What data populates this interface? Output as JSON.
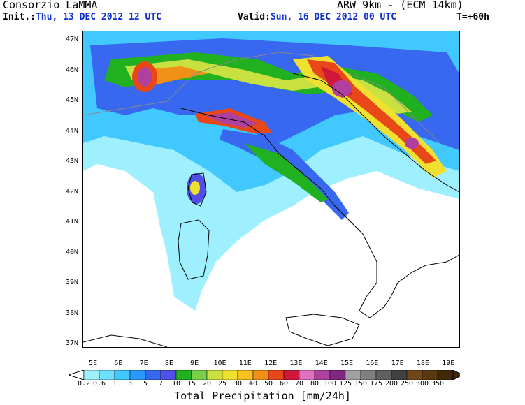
{
  "header": {
    "org": "Consorzio LaMMA",
    "model": "ARW 9km - (ECM 14km)",
    "init_label": "Init.:",
    "init_value": "Thu, 13 DEC 2012  12 UTC",
    "valid_label": "Valid:",
    "valid_value": "Sun, 16 DEC 2012  00 UTC",
    "lead": "T=+60h"
  },
  "lat_labels": [
    "47N",
    "46N",
    "45N",
    "44N",
    "43N",
    "42N",
    "41N",
    "40N",
    "39N",
    "38N",
    "37N"
  ],
  "lon_labels": [
    "5E",
    "6E",
    "7E",
    "8E",
    "9E",
    "10E",
    "11E",
    "12E",
    "13E",
    "14E",
    "15E",
    "16E",
    "17E",
    "18E",
    "19E"
  ],
  "colorbar": {
    "labels": [
      "0.2",
      "0.6",
      "1",
      "3",
      "5",
      "7",
      "10",
      "15",
      "20",
      "25",
      "30",
      "40",
      "50",
      "60",
      "70",
      "80",
      "100",
      "125",
      "150",
      "175",
      "200",
      "250",
      "300",
      "350"
    ],
    "colors": [
      "#9ef0ff",
      "#6ee0ff",
      "#40c8ff",
      "#2a98ff",
      "#3868f0",
      "#5050e8",
      "#20b020",
      "#78d048",
      "#c8e040",
      "#f0e030",
      "#f8c020",
      "#f09018",
      "#e84818",
      "#d01838",
      "#e070c0",
      "#b040a0",
      "#802880",
      "#a0a0a0",
      "#808080",
      "#606060",
      "#404040",
      "#704818",
      "#5a3810",
      "#402808"
    ]
  },
  "footer": "Total Precipitation [mm/24h]"
}
